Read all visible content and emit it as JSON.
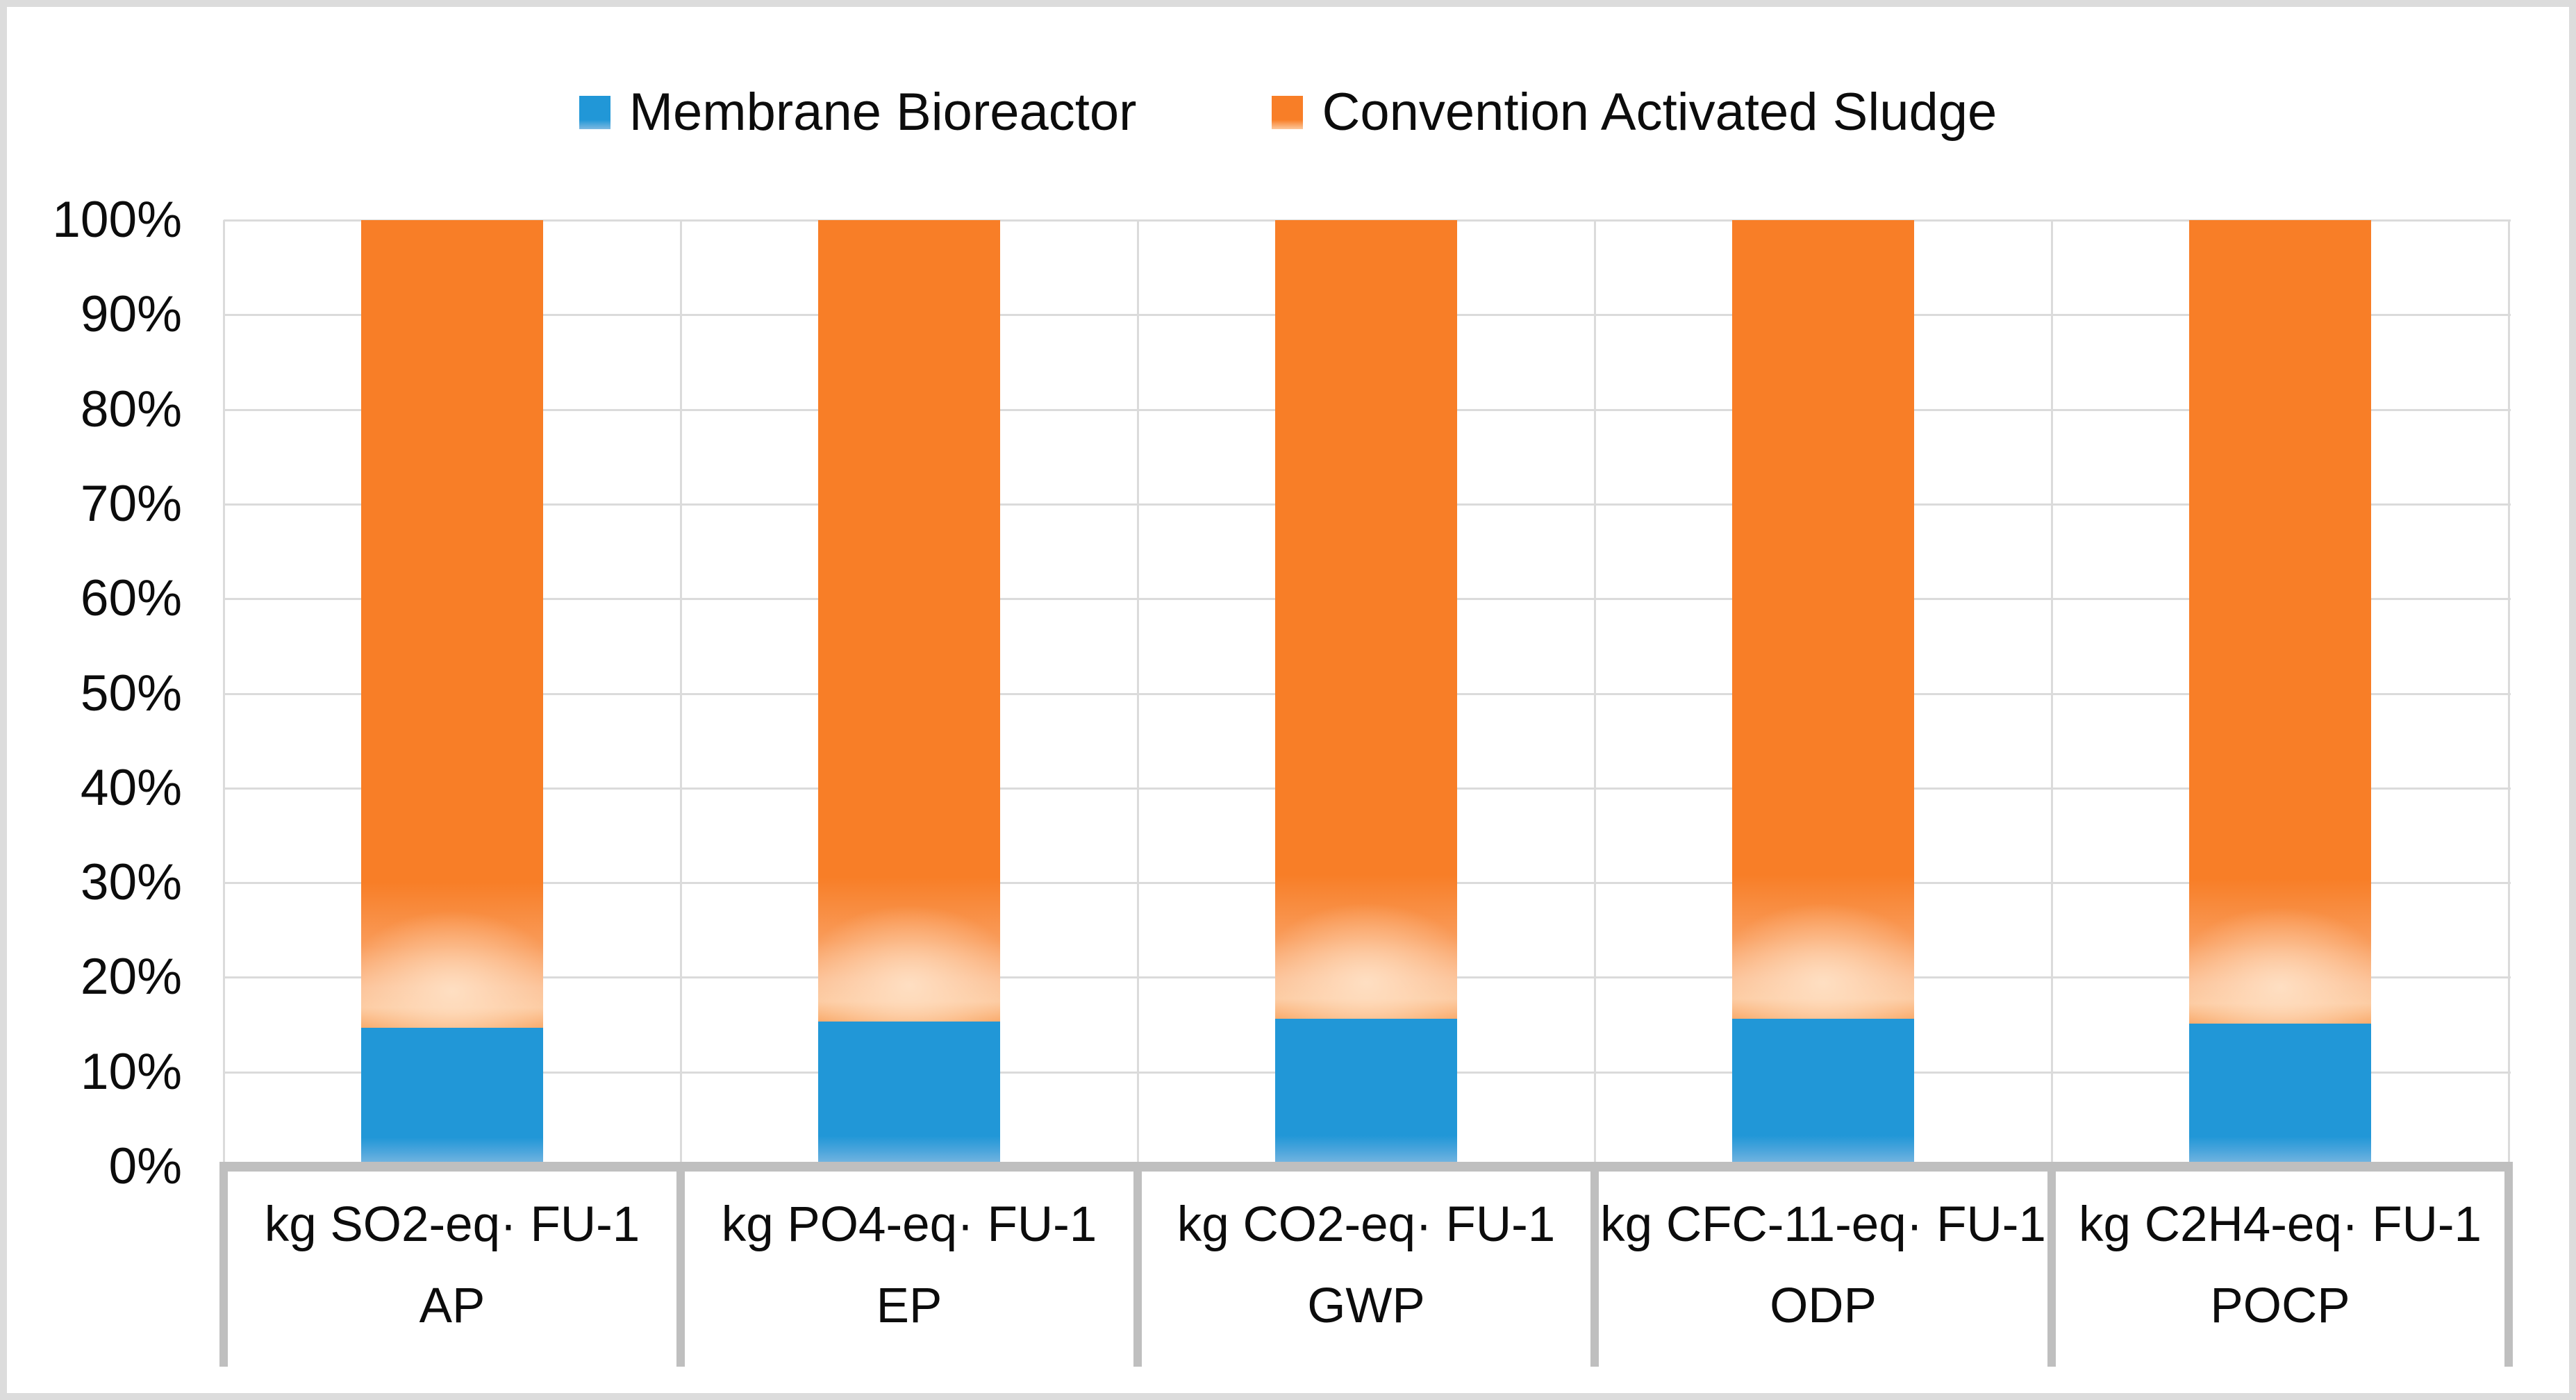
{
  "legend": {
    "items": [
      {
        "id": "membrane-bioreactor",
        "label": "Membrane Bioreactor",
        "color": "#2197d7"
      },
      {
        "id": "convention-activated-sludge",
        "label": "Convention Activated Sludge",
        "color": "#f87e27"
      }
    ]
  },
  "y_axis": {
    "ticks": [
      "100%",
      "90%",
      "80%",
      "70%",
      "60%",
      "50%",
      "40%",
      "30%",
      "20%",
      "10%",
      "0%"
    ]
  },
  "x_axis": {
    "categories": [
      {
        "unit": "kg SO2-eq· FU-1",
        "code": "AP"
      },
      {
        "unit": "kg PO4-eq· FU-1",
        "code": "EP"
      },
      {
        "unit": "kg CO2-eq· FU-1",
        "code": "GWP"
      },
      {
        "unit": "kg CFC-11-eq· FU-1",
        "code": "ODP"
      },
      {
        "unit": "kg C2H4-eq· FU-1",
        "code": "POCP"
      }
    ]
  },
  "colors": {
    "mbr_blue": "#2197d7",
    "mbr_blue_light": "#7fb9e1",
    "cas_orange": "#f87e27",
    "cas_orange_light": "#fcc89d",
    "gridline": "#dbdbdb",
    "axis_gray": "#bfbfbf",
    "outer_border": "#dcdcdc",
    "text": "#0c0c0c"
  },
  "chart_data": {
    "type": "bar",
    "subtype": "stacked-100-percent",
    "title": "",
    "categories": [
      "AP",
      "EP",
      "GWP",
      "ODP",
      "POCP"
    ],
    "category_units": [
      "kg SO2-eq· FU-1",
      "kg PO4-eq· FU-1",
      "kg CO2-eq· FU-1",
      "kg CFC-11-eq· FU-1",
      "kg C2H4-eq· FU-1"
    ],
    "series": [
      {
        "name": "Membrane Bioreactor",
        "color": "#2197d7",
        "values": [
          14.7,
          15.3,
          15.6,
          15.6,
          15.1
        ]
      },
      {
        "name": "Convention Activated Sludge",
        "color": "#f87e27",
        "values": [
          85.3,
          84.7,
          84.4,
          84.4,
          84.9
        ]
      }
    ],
    "xlabel": "",
    "ylabel": "",
    "ylim": [
      0,
      100
    ],
    "ytick_step": 10,
    "ytick_format": "percent",
    "grid": true,
    "vertical_category_gridlines": true,
    "legend_position": "top-center"
  }
}
